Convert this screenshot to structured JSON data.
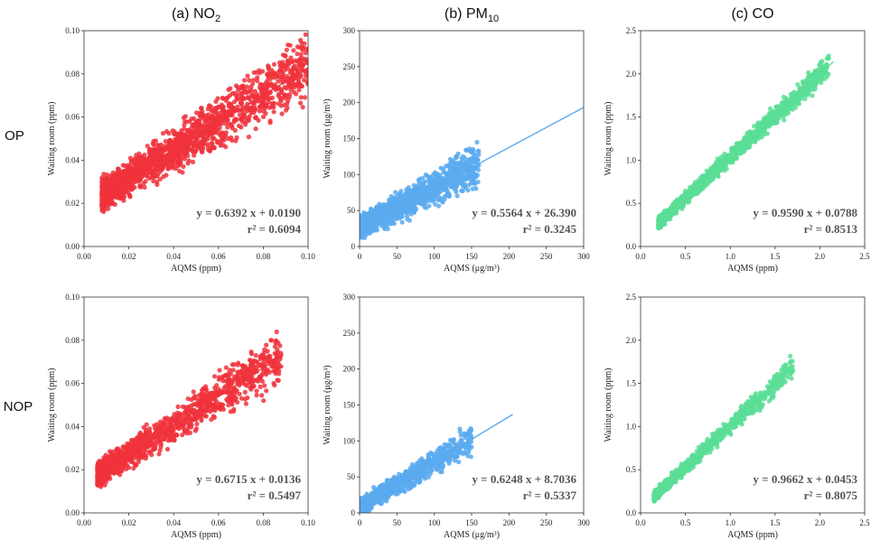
{
  "figure": {
    "column_titles": [
      {
        "prefix": "(a) NO",
        "sub": "2"
      },
      {
        "prefix": "(b) PM",
        "sub": "10"
      },
      {
        "prefix": "(c) CO",
        "sub": ""
      }
    ],
    "row_labels": [
      "OP",
      "NOP"
    ]
  },
  "chart_data": [
    {
      "type": "scatter",
      "pollutant": "NO2",
      "group": "OP",
      "color": "#f0323c",
      "xlabel": "AQMS (ppm)",
      "ylabel": "Waiting room (ppm)",
      "xlim": [
        0,
        0.1
      ],
      "ylim": [
        0,
        0.1
      ],
      "xticks": [
        "0.00",
        "0.02",
        "0.04",
        "0.06",
        "0.08",
        "0.10"
      ],
      "yticks": [
        "0.00",
        "0.02",
        "0.04",
        "0.06",
        "0.08",
        "0.10"
      ],
      "slope": 0.6392,
      "intercept": 0.019,
      "fit_x": [
        0.008,
        0.1
      ],
      "eq_text": "y = 0.6392 x + 0.0190",
      "r2_label": "r² = ",
      "r2_value": "0.6094",
      "x_range": [
        0.008,
        0.1
      ],
      "spread": 0.009,
      "n_points": 1800,
      "seed": 11
    },
    {
      "type": "scatter",
      "pollutant": "PM10",
      "group": "OP",
      "color": "#5aaaf0",
      "xlabel": "AQMS (μg/m³)",
      "ylabel": "Waiting room (μg/m³)",
      "xlim": [
        0,
        300
      ],
      "ylim": [
        0,
        300
      ],
      "xticks": [
        "0",
        "50",
        "100",
        "150",
        "200",
        "250",
        "300"
      ],
      "yticks": [
        "0",
        "50",
        "100",
        "150",
        "200",
        "250",
        "300"
      ],
      "slope": 0.5564,
      "intercept": 26.39,
      "fit_x": [
        0,
        300
      ],
      "eq_text": "y = 0.5564 x + 26.390",
      "r2_label": "r² = ",
      "r2_value": "0.3245",
      "x_range": [
        1,
        160
      ],
      "spread": 18,
      "n_points": 1500,
      "seed": 23
    },
    {
      "type": "scatter",
      "pollutant": "CO",
      "group": "OP",
      "color": "#5ade96",
      "xlabel": "AQMS (ppm)",
      "ylabel": "Waiting room (ppm)",
      "xlim": [
        0,
        2.5
      ],
      "ylim": [
        0,
        2.5
      ],
      "xticks": [
        "0.0",
        "0.5",
        "1.0",
        "1.5",
        "2.0",
        "2.5"
      ],
      "yticks": [
        "0.0",
        "0.5",
        "1.0",
        "1.5",
        "2.0",
        "2.5"
      ],
      "slope": 0.959,
      "intercept": 0.0788,
      "fit_x": [
        0.2,
        2.15
      ],
      "eq_text": "y = 0.9590 x + 0.0788",
      "r2_label": "r² = ",
      "r2_value": "0.8513",
      "x_range": [
        0.2,
        2.1
      ],
      "spread": 0.08,
      "n_points": 1400,
      "seed": 37
    },
    {
      "type": "scatter",
      "pollutant": "NO2",
      "group": "NOP",
      "color": "#f0323c",
      "xlabel": "AQMS (ppm)",
      "ylabel": "Waiting room (ppm)",
      "xlim": [
        0,
        0.1
      ],
      "ylim": [
        0,
        0.1
      ],
      "xticks": [
        "0.00",
        "0.02",
        "0.04",
        "0.06",
        "0.08",
        "0.10"
      ],
      "yticks": [
        "0.00",
        "0.02",
        "0.04",
        "0.06",
        "0.08",
        "0.10"
      ],
      "slope": 0.6715,
      "intercept": 0.0136,
      "fit_x": [
        0.006,
        0.089
      ],
      "eq_text": "y = 0.6715 x + 0.0136",
      "r2_label": "r² = ",
      "r2_value": "0.5497",
      "x_range": [
        0.006,
        0.088
      ],
      "spread": 0.007,
      "n_points": 1300,
      "seed": 41
    },
    {
      "type": "scatter",
      "pollutant": "PM10",
      "group": "NOP",
      "color": "#5aaaf0",
      "xlabel": "AQMS (μg/m³)",
      "ylabel": "Waiting room (μg/m³)",
      "xlim": [
        0,
        300
      ],
      "ylim": [
        0,
        300
      ],
      "xticks": [
        "0",
        "50",
        "100",
        "150",
        "200",
        "250",
        "300"
      ],
      "yticks": [
        "0",
        "50",
        "100",
        "150",
        "200",
        "250",
        "300"
      ],
      "slope": 0.6248,
      "intercept": 8.7036,
      "fit_x": [
        0,
        205
      ],
      "eq_text": "y = 0.6248 x + 8.7036",
      "r2_label": "r² = ",
      "r2_value": "0.5337",
      "x_range": [
        1,
        150
      ],
      "spread": 14,
      "n_points": 900,
      "seed": 53
    },
    {
      "type": "scatter",
      "pollutant": "CO",
      "group": "NOP",
      "color": "#5ade96",
      "xlabel": "AQMS (ppm)",
      "ylabel": "Waiting room (ppm)",
      "xlim": [
        0,
        2.5
      ],
      "ylim": [
        0,
        2.5
      ],
      "xticks": [
        "0.0",
        "0.5",
        "1.0",
        "1.5",
        "2.0",
        "2.5"
      ],
      "yticks": [
        "0.0",
        "0.5",
        "1.0",
        "1.5",
        "2.0",
        "2.5"
      ],
      "slope": 0.9662,
      "intercept": 0.0453,
      "fit_x": [
        0.15,
        1.72
      ],
      "eq_text": "y = 0.9662 x + 0.0453",
      "r2_label": "r² = ",
      "r2_value": "0.8075",
      "x_range": [
        0.15,
        1.7
      ],
      "spread": 0.08,
      "n_points": 900,
      "seed": 67
    }
  ]
}
